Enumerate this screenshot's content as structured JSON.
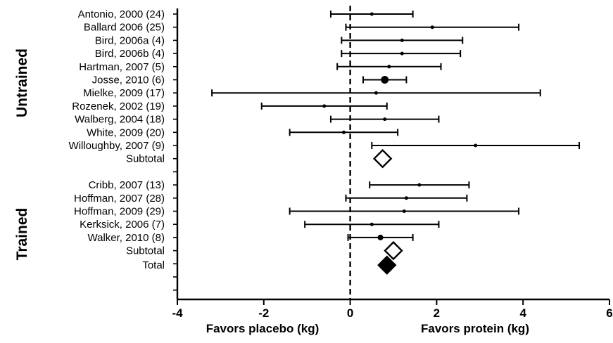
{
  "chart_data": {
    "type": "forest",
    "xlim": [
      -4,
      6
    ],
    "xticks": [
      -4,
      -2,
      0,
      2,
      4,
      6
    ],
    "xlabel_left": "Favors placebo (kg)",
    "xlabel_right": "Favors protein (kg)",
    "groups": [
      {
        "name": "Untrained",
        "studies": [
          {
            "label": "Antonio, 2000 (24)",
            "estimate": 0.5,
            "ci": [
              -0.45,
              1.45
            ],
            "marker": "small"
          },
          {
            "label": "Ballard 2006 (25)",
            "estimate": 1.9,
            "ci": [
              -0.1,
              3.9
            ],
            "marker": "small"
          },
          {
            "label": "Bird, 2006a (4)",
            "estimate": 1.2,
            "ci": [
              -0.2,
              2.6
            ],
            "marker": "small"
          },
          {
            "label": "Bird, 2006b (4)",
            "estimate": 1.2,
            "ci": [
              -0.2,
              2.55
            ],
            "marker": "small"
          },
          {
            "label": "Hartman, 2007 (5)",
            "estimate": 0.9,
            "ci": [
              -0.3,
              2.1
            ],
            "marker": "small"
          },
          {
            "label": "Josse, 2010 (6)",
            "estimate": 0.8,
            "ci": [
              0.3,
              1.3
            ],
            "marker": "large"
          },
          {
            "label": "Mielke, 2009 (17)",
            "estimate": 0.6,
            "ci": [
              -3.2,
              4.4
            ],
            "marker": "small"
          },
          {
            "label": "Rozenek, 2002 (19)",
            "estimate": -0.6,
            "ci": [
              -2.05,
              0.85
            ],
            "marker": "small"
          },
          {
            "label": "Walberg, 2004 (18)",
            "estimate": 0.8,
            "ci": [
              -0.45,
              2.05
            ],
            "marker": "small"
          },
          {
            "label": "White, 2009 (20)",
            "estimate": -0.15,
            "ci": [
              -1.4,
              1.1
            ],
            "marker": "small"
          },
          {
            "label": "Willoughby, 2007 (9)",
            "estimate": 2.9,
            "ci": [
              0.5,
              5.3
            ],
            "marker": "small"
          }
        ],
        "subtotal": {
          "label": "Subtotal",
          "estimate": 0.75,
          "fill": "open"
        }
      },
      {
        "name": "Trained",
        "studies": [
          {
            "label": "Cribb, 2007 (13)",
            "estimate": 1.6,
            "ci": [
              0.45,
              2.75
            ],
            "marker": "small"
          },
          {
            "label": "Hoffman, 2007 (28)",
            "estimate": 1.3,
            "ci": [
              -0.1,
              2.7
            ],
            "marker": "small"
          },
          {
            "label": "Hoffman, 2009 (29)",
            "estimate": 1.25,
            "ci": [
              -1.4,
              3.9
            ],
            "marker": "small"
          },
          {
            "label": "Kerksick, 2006 (7)",
            "estimate": 0.5,
            "ci": [
              -1.05,
              2.05
            ],
            "marker": "small"
          },
          {
            "label": "Walker, 2010 (8)",
            "estimate": 0.7,
            "ci": [
              -0.05,
              1.45
            ],
            "marker": "medium"
          }
        ],
        "subtotal": {
          "label": "Subtotal",
          "estimate": 1.0,
          "fill": "open"
        }
      }
    ],
    "total": {
      "label": "Total",
      "estimate": 0.85,
      "fill": "solid"
    },
    "reference_line": {
      "x": 0,
      "style": "dashed"
    },
    "grid": false,
    "legend": "none"
  }
}
